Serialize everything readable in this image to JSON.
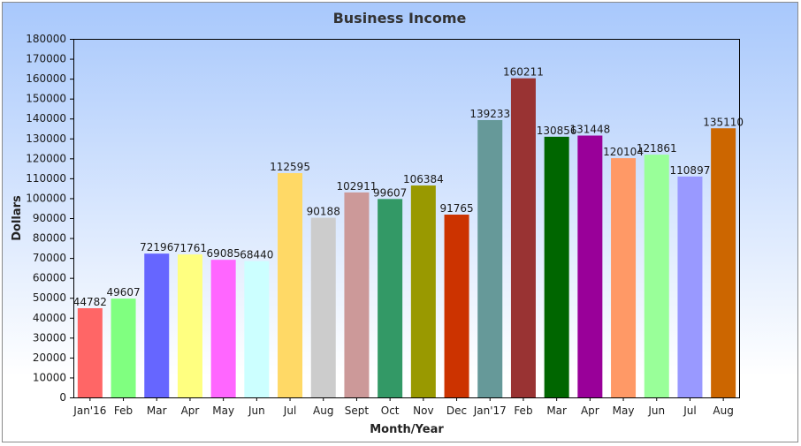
{
  "chart_data": {
    "type": "bar",
    "title": "Business Income",
    "xlabel": "Month/Year",
    "ylabel": "Dollars",
    "ylim": [
      0,
      180000
    ],
    "ytick_step": 10000,
    "grid": false,
    "categories": [
      "Jan'16",
      "Feb",
      "Mar",
      "Apr",
      "May",
      "Jun",
      "Jul",
      "Aug",
      "Sept",
      "Oct",
      "Nov",
      "Dec",
      "Jan'17",
      "Feb",
      "Mar",
      "Apr",
      "May",
      "Jun",
      "Jul",
      "Aug"
    ],
    "values": [
      44782,
      49607,
      72196,
      71761,
      69085,
      68440,
      112595,
      90188,
      102911,
      99607,
      106384,
      91765,
      139233,
      160211,
      130856,
      131448,
      120104,
      121861,
      110897,
      135110
    ],
    "colors": [
      "#ff6666",
      "#80ff80",
      "#6666ff",
      "#ffff80",
      "#ff66ff",
      "#ccffff",
      "#ffd966",
      "#cccccc",
      "#cc9999",
      "#339966",
      "#999900",
      "#cc3300",
      "#669999",
      "#993333",
      "#006600",
      "#990099",
      "#ff9966",
      "#99ff99",
      "#9999ff",
      "#cc6600"
    ],
    "background_gradient": [
      "#a8c8fc",
      "#ffffff"
    ]
  }
}
